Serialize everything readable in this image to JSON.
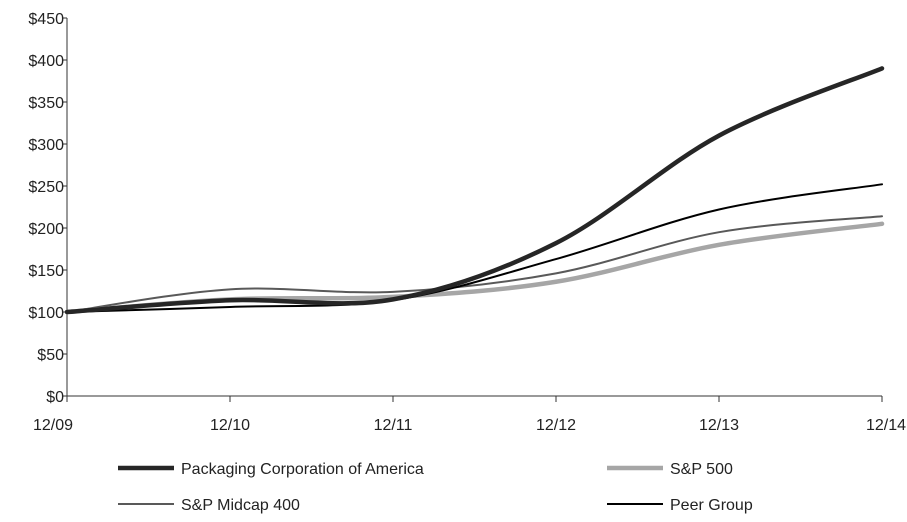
{
  "chart_data": {
    "type": "line",
    "title": "",
    "xlabel": "",
    "ylabel": "",
    "categories": [
      "12/09",
      "12/10",
      "12/11",
      "12/12",
      "12/13",
      "12/14"
    ],
    "ylim": [
      0,
      450
    ],
    "yticks": [
      0,
      50,
      100,
      150,
      200,
      250,
      300,
      350,
      400,
      450
    ],
    "ytick_labels": [
      "$0",
      "$50",
      "$100",
      "$150",
      "$200",
      "$250",
      "$300",
      "$350",
      "$400",
      "$450"
    ],
    "grid": false,
    "legend_position": "bottom",
    "series": [
      {
        "name": "Packaging Corporation of America",
        "values": [
          100,
          114,
          115,
          182,
          310,
          390
        ],
        "color": "#262626",
        "style": "thick"
      },
      {
        "name": "S&P 500",
        "values": [
          100,
          115,
          118,
          136,
          180,
          205
        ],
        "color": "#a6a6a6",
        "style": "thick"
      },
      {
        "name": "S&P Midcap 400",
        "values": [
          100,
          127,
          124,
          146,
          195,
          214
        ],
        "color": "#595959",
        "style": "thin"
      },
      {
        "name": "Peer Group",
        "values": [
          100,
          106,
          114,
          163,
          222,
          252
        ],
        "color": "#000000",
        "style": "thin"
      }
    ]
  }
}
